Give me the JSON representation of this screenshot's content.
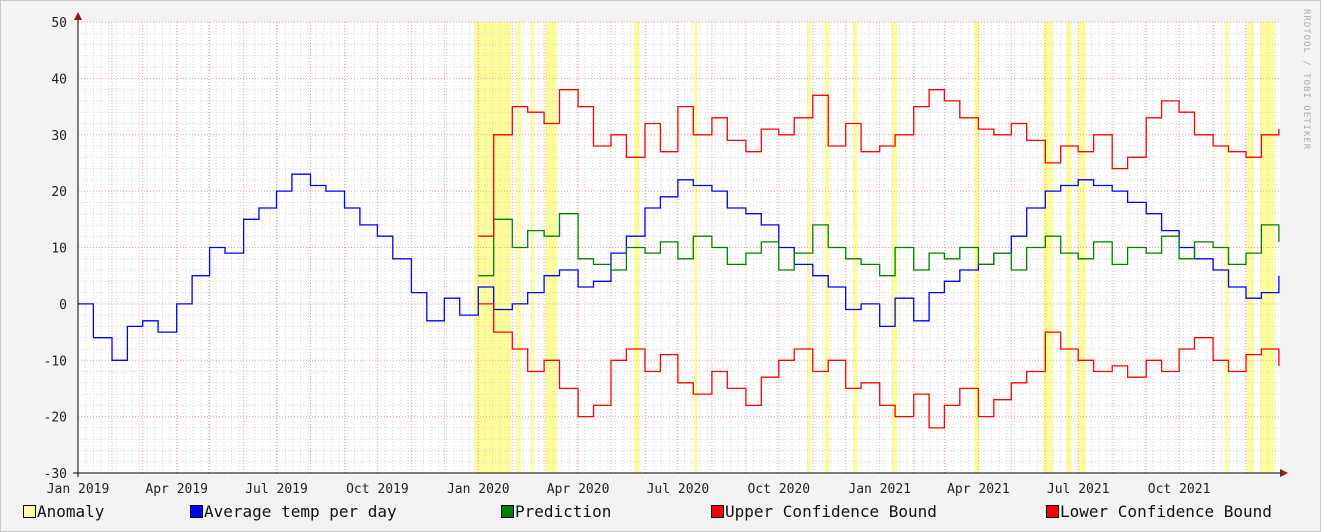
{
  "chart_data": {
    "type": "line",
    "title": "",
    "xlabel": "",
    "ylabel": "",
    "ylim": [
      -30,
      50
    ],
    "yticks": [
      -30,
      -20,
      -10,
      0,
      10,
      20,
      30,
      40,
      50
    ],
    "x_range": [
      "2019-01-01",
      "2021-12-31"
    ],
    "x_ticks": [
      {
        "date": "2019-01-01",
        "label": "Jan 2019"
      },
      {
        "date": "2019-04-01",
        "label": "Apr 2019"
      },
      {
        "date": "2019-07-01",
        "label": "Jul 2019"
      },
      {
        "date": "2019-10-01",
        "label": "Oct 2019"
      },
      {
        "date": "2020-01-01",
        "label": "Jan 2020"
      },
      {
        "date": "2020-04-01",
        "label": "Apr 2020"
      },
      {
        "date": "2020-07-01",
        "label": "Jul 2020"
      },
      {
        "date": "2020-10-01",
        "label": "Oct 2020"
      },
      {
        "date": "2021-01-01",
        "label": "Jan 2021"
      },
      {
        "date": "2021-04-01",
        "label": "Apr 2021"
      },
      {
        "date": "2021-07-01",
        "label": "Jul 2021"
      },
      {
        "date": "2021-10-01",
        "label": "Oct 2021"
      }
    ],
    "grid": true,
    "legend_position": "bottom",
    "watermark": "RRDTOOL / TOBI OETIKER",
    "series": [
      {
        "name": "Average temp per day",
        "color": "#0000ff",
        "x": [
          "2019-01-01",
          "2019-01-15",
          "2019-02-01",
          "2019-02-15",
          "2019-03-01",
          "2019-03-15",
          "2019-04-01",
          "2019-04-15",
          "2019-05-01",
          "2019-05-15",
          "2019-06-01",
          "2019-06-15",
          "2019-07-01",
          "2019-07-15",
          "2019-08-01",
          "2019-08-15",
          "2019-09-01",
          "2019-09-15",
          "2019-10-01",
          "2019-10-15",
          "2019-11-01",
          "2019-11-15",
          "2019-12-01",
          "2019-12-15",
          "2020-01-01",
          "2020-01-15",
          "2020-02-01",
          "2020-02-15",
          "2020-03-01",
          "2020-03-15",
          "2020-04-01",
          "2020-04-15",
          "2020-05-01",
          "2020-05-15",
          "2020-06-01",
          "2020-06-15",
          "2020-07-01",
          "2020-07-15",
          "2020-08-01",
          "2020-08-15",
          "2020-09-01",
          "2020-09-15",
          "2020-10-01",
          "2020-10-15",
          "2020-11-01",
          "2020-11-15",
          "2020-12-01",
          "2020-12-15",
          "2021-01-01",
          "2021-01-15",
          "2021-02-01",
          "2021-02-15",
          "2021-03-01",
          "2021-03-15",
          "2021-04-01",
          "2021-04-15",
          "2021-05-01",
          "2021-05-15",
          "2021-06-01",
          "2021-06-15",
          "2021-07-01",
          "2021-07-15",
          "2021-08-01",
          "2021-08-15",
          "2021-09-01",
          "2021-09-15",
          "2021-10-01",
          "2021-10-15",
          "2021-11-01",
          "2021-11-15",
          "2021-12-01",
          "2021-12-15",
          "2021-12-31"
        ],
        "values": [
          0,
          -6,
          -10,
          -4,
          -3,
          -5,
          0,
          5,
          10,
          9,
          15,
          17,
          20,
          23,
          21,
          20,
          17,
          14,
          12,
          8,
          2,
          -3,
          1,
          -2,
          3,
          -1,
          0,
          2,
          5,
          6,
          3,
          4,
          9,
          12,
          17,
          19,
          22,
          21,
          20,
          17,
          16,
          14,
          10,
          7,
          5,
          3,
          -1,
          0,
          -4,
          1,
          -3,
          2,
          4,
          6,
          7,
          9,
          12,
          17,
          20,
          21,
          22,
          21,
          20,
          18,
          16,
          13,
          10,
          8,
          6,
          3,
          1,
          2,
          5
        ]
      },
      {
        "name": "Prediction",
        "color": "#008000",
        "x": [
          "2020-01-01",
          "2020-01-15",
          "2020-02-01",
          "2020-02-15",
          "2020-03-01",
          "2020-03-15",
          "2020-04-01",
          "2020-04-15",
          "2020-05-01",
          "2020-05-15",
          "2020-06-01",
          "2020-06-15",
          "2020-07-01",
          "2020-07-15",
          "2020-08-01",
          "2020-08-15",
          "2020-09-01",
          "2020-09-15",
          "2020-10-01",
          "2020-10-15",
          "2020-11-01",
          "2020-11-15",
          "2020-12-01",
          "2020-12-15",
          "2021-01-01",
          "2021-01-15",
          "2021-02-01",
          "2021-02-15",
          "2021-03-01",
          "2021-03-15",
          "2021-04-01",
          "2021-04-15",
          "2021-05-01",
          "2021-05-15",
          "2021-06-01",
          "2021-06-15",
          "2021-07-01",
          "2021-07-15",
          "2021-08-01",
          "2021-08-15",
          "2021-09-01",
          "2021-09-15",
          "2021-10-01",
          "2021-10-15",
          "2021-11-01",
          "2021-11-15",
          "2021-12-01",
          "2021-12-15",
          "2021-12-31"
        ],
        "values": [
          5,
          15,
          10,
          13,
          12,
          16,
          8,
          7,
          6,
          10,
          9,
          11,
          8,
          12,
          10,
          7,
          9,
          11,
          6,
          9,
          14,
          10,
          8,
          7,
          5,
          10,
          6,
          9,
          8,
          10,
          7,
          9,
          6,
          10,
          12,
          9,
          8,
          11,
          7,
          10,
          9,
          12,
          8,
          11,
          10,
          7,
          9,
          14,
          11
        ]
      },
      {
        "name": "Upper Confidence Bound",
        "color": "#ff0000",
        "x": [
          "2020-01-01",
          "2020-01-15",
          "2020-02-01",
          "2020-02-15",
          "2020-03-01",
          "2020-03-15",
          "2020-04-01",
          "2020-04-15",
          "2020-05-01",
          "2020-05-15",
          "2020-06-01",
          "2020-06-15",
          "2020-07-01",
          "2020-07-15",
          "2020-08-01",
          "2020-08-15",
          "2020-09-01",
          "2020-09-15",
          "2020-10-01",
          "2020-10-15",
          "2020-11-01",
          "2020-11-15",
          "2020-12-01",
          "2020-12-15",
          "2021-01-01",
          "2021-01-15",
          "2021-02-01",
          "2021-02-15",
          "2021-03-01",
          "2021-03-15",
          "2021-04-01",
          "2021-04-15",
          "2021-05-01",
          "2021-05-15",
          "2021-06-01",
          "2021-06-15",
          "2021-07-01",
          "2021-07-15",
          "2021-08-01",
          "2021-08-15",
          "2021-09-01",
          "2021-09-15",
          "2021-10-01",
          "2021-10-15",
          "2021-11-01",
          "2021-11-15",
          "2021-12-01",
          "2021-12-15",
          "2021-12-31"
        ],
        "values": [
          12,
          30,
          35,
          34,
          32,
          38,
          35,
          28,
          30,
          26,
          32,
          27,
          35,
          30,
          33,
          29,
          27,
          31,
          30,
          33,
          37,
          28,
          32,
          27,
          28,
          30,
          35,
          38,
          36,
          33,
          31,
          30,
          32,
          29,
          25,
          28,
          27,
          30,
          24,
          26,
          33,
          36,
          34,
          30,
          28,
          27,
          26,
          30,
          31
        ]
      },
      {
        "name": "Lower Confidence Bound",
        "color": "#ff0000",
        "x": [
          "2020-01-01",
          "2020-01-15",
          "2020-02-01",
          "2020-02-15",
          "2020-03-01",
          "2020-03-15",
          "2020-04-01",
          "2020-04-15",
          "2020-05-01",
          "2020-05-15",
          "2020-06-01",
          "2020-06-15",
          "2020-07-01",
          "2020-07-15",
          "2020-08-01",
          "2020-08-15",
          "2020-09-01",
          "2020-09-15",
          "2020-10-01",
          "2020-10-15",
          "2020-11-01",
          "2020-11-15",
          "2020-12-01",
          "2020-12-15",
          "2021-01-01",
          "2021-01-15",
          "2021-02-01",
          "2021-02-15",
          "2021-03-01",
          "2021-03-15",
          "2021-04-01",
          "2021-04-15",
          "2021-05-01",
          "2021-05-15",
          "2021-06-01",
          "2021-06-15",
          "2021-07-01",
          "2021-07-15",
          "2021-08-01",
          "2021-08-15",
          "2021-09-01",
          "2021-09-15",
          "2021-10-01",
          "2021-10-15",
          "2021-11-01",
          "2021-11-15",
          "2021-12-01",
          "2021-12-15",
          "2021-12-31"
        ],
        "values": [
          0,
          -5,
          -8,
          -12,
          -10,
          -15,
          -20,
          -18,
          -10,
          -8,
          -12,
          -9,
          -14,
          -16,
          -12,
          -15,
          -18,
          -13,
          -10,
          -8,
          -12,
          -10,
          -15,
          -14,
          -18,
          -20,
          -16,
          -22,
          -18,
          -15,
          -20,
          -17,
          -14,
          -12,
          -5,
          -8,
          -10,
          -12,
          -11,
          -13,
          -10,
          -12,
          -8,
          -6,
          -10,
          -12,
          -9,
          -8,
          -11
        ]
      }
    ],
    "anomaly": {
      "name": "Anomaly",
      "color": "#ffff99",
      "periods": [
        [
          "2019-12-28",
          "2020-01-31"
        ],
        [
          "2020-02-05",
          "2020-02-09"
        ],
        [
          "2020-02-18",
          "2020-02-21"
        ],
        [
          "2020-03-02",
          "2020-03-13"
        ],
        [
          "2020-05-22",
          "2020-05-27"
        ],
        [
          "2020-07-16",
          "2020-07-19"
        ],
        [
          "2020-10-27",
          "2020-10-30"
        ],
        [
          "2020-11-12",
          "2020-11-16"
        ],
        [
          "2020-12-08",
          "2020-12-12"
        ],
        [
          "2021-01-12",
          "2021-01-17"
        ],
        [
          "2021-03-28",
          "2021-04-02"
        ],
        [
          "2021-05-30",
          "2021-06-08"
        ],
        [
          "2021-06-20",
          "2021-06-25"
        ],
        [
          "2021-07-01",
          "2021-07-08"
        ],
        [
          "2021-11-12",
          "2021-11-15"
        ],
        [
          "2021-12-02",
          "2021-12-08"
        ],
        [
          "2021-12-14",
          "2021-12-27"
        ]
      ]
    },
    "legend": [
      {
        "label": "Anomaly",
        "color": "#ffff99"
      },
      {
        "label": "Average temp per day",
        "color": "#0000ff"
      },
      {
        "label": "Prediction",
        "color": "#008000"
      },
      {
        "label": "Upper Confidence Bound",
        "color": "#ff0000"
      },
      {
        "label": "Lower Confidence Bound",
        "color": "#ff0000"
      }
    ]
  }
}
